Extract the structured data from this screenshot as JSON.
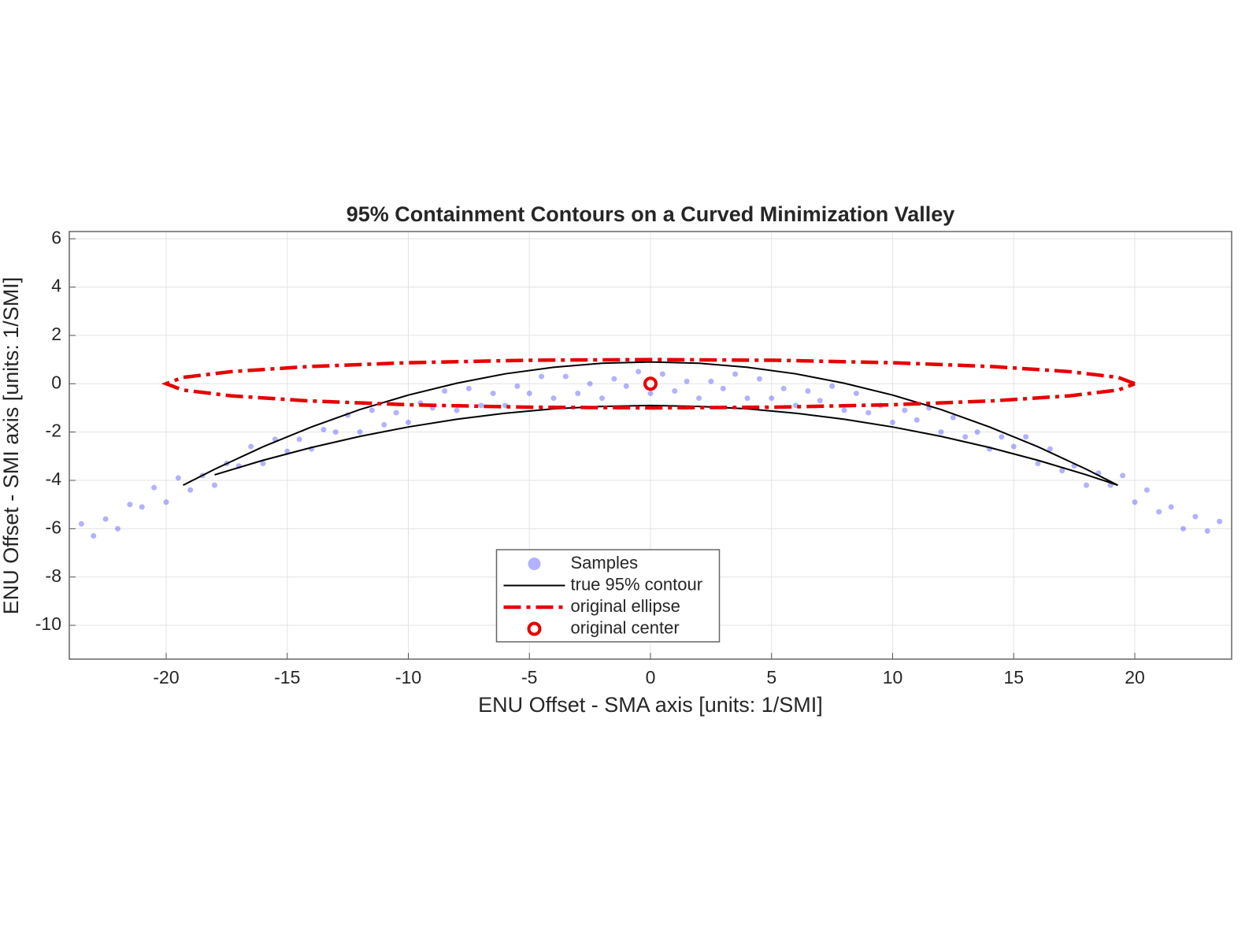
{
  "chart_data": {
    "type": "scatter",
    "title": "95% Containment Contours on a Curved Minimization Valley",
    "xlabel": "ENU Offset - SMA axis [units: 1/SMI]",
    "ylabel": "ENU Offset - SMI axis [units: 1/SMI]",
    "xlim": [
      -24,
      24
    ],
    "ylim": [
      -11.4,
      6.3
    ],
    "xticks": [
      -20,
      -15,
      -10,
      -5,
      0,
      5,
      10,
      15,
      20
    ],
    "yticks": [
      6,
      4,
      2,
      0,
      -2,
      -4,
      -6,
      -8,
      -10
    ],
    "grid": true,
    "legend": "south",
    "series": [
      {
        "name": "Samples",
        "style": "points",
        "color": "#0000ff",
        "x": [
          -23.5,
          -23,
          -22.5,
          -22,
          -21.5,
          -21,
          -20.5,
          -20,
          -19.5,
          -19,
          -18.5,
          -18,
          -17.5,
          -17,
          -16.5,
          -16,
          -15.5,
          -15,
          -14.5,
          -14,
          -13.5,
          -13,
          -12.5,
          -12,
          -11.5,
          -11,
          -10.5,
          -10,
          -9.5,
          -9,
          -8.5,
          -8,
          -7.5,
          -7,
          -6.5,
          -6,
          -5.5,
          -5,
          -4.5,
          -4,
          -3.5,
          -3,
          -2.5,
          -2,
          -1.5,
          -1,
          -0.5,
          0,
          0.5,
          1,
          1.5,
          2,
          2.5,
          3,
          3.5,
          4,
          4.5,
          5,
          5.5,
          6,
          6.5,
          7,
          7.5,
          8,
          8.5,
          9,
          9.5,
          10,
          10.5,
          11,
          11.5,
          12,
          12.5,
          13,
          13.5,
          14,
          14.5,
          15,
          15.5,
          16,
          16.5,
          17,
          17.5,
          18,
          18.5,
          19,
          19.5,
          20,
          20.5,
          21,
          21.5,
          22,
          22.5,
          23,
          23.5
        ],
        "y": [
          -5.8,
          -6.3,
          -5.6,
          -6.0,
          -5.0,
          -5.1,
          -4.3,
          -4.9,
          -3.9,
          -4.4,
          -3.8,
          -4.2,
          -3.3,
          -3.4,
          -2.6,
          -3.3,
          -2.3,
          -2.8,
          -2.3,
          -2.7,
          -1.9,
          -2.0,
          -1.3,
          -2.0,
          -1.1,
          -1.7,
          -1.2,
          -1.6,
          -0.8,
          -1.0,
          -0.3,
          -1.1,
          -0.2,
          -0.9,
          -0.4,
          -0.9,
          -0.1,
          -0.4,
          0.3,
          -0.6,
          0.3,
          -0.4,
          0.0,
          -0.6,
          0.2,
          -0.1,
          0.5,
          -0.4,
          0.4,
          -0.3,
          0.1,
          -0.6,
          0.1,
          -0.2,
          0.4,
          -0.6,
          0.2,
          -0.6,
          -0.2,
          -0.9,
          -0.3,
          -0.7,
          -0.1,
          -1.1,
          -0.4,
          -1.2,
          -0.9,
          -1.6,
          -1.1,
          -1.5,
          -1.0,
          -2.0,
          -1.4,
          -2.2,
          -2.0,
          -2.7,
          -2.2,
          -2.6,
          -2.2,
          -3.3,
          -2.7,
          -3.6,
          -3.4,
          -4.2,
          -3.7,
          -4.2,
          -3.8,
          -4.9,
          -4.4,
          -5.3,
          -5.1,
          -6.0,
          -5.5,
          -6.1,
          -5.7
        ]
      },
      {
        "name": "true 95% contour",
        "style": "solid",
        "color": "#000000",
        "x": [
          -19.3,
          -18,
          -16,
          -14,
          -12,
          -10,
          -8,
          -6,
          -4,
          -2,
          0,
          2,
          4,
          6,
          8,
          10,
          12,
          14,
          16,
          18,
          19.3,
          18,
          16,
          14,
          12,
          10,
          8,
          6,
          4,
          2,
          0,
          -2,
          -4,
          -6,
          -8,
          -10,
          -12,
          -14,
          -16,
          -18
        ],
        "y": [
          -4.2,
          -3.54,
          -2.61,
          -1.79,
          -1.07,
          -0.47,
          0.02,
          0.41,
          0.68,
          0.85,
          0.9,
          0.85,
          0.68,
          0.41,
          0.02,
          -0.47,
          -1.07,
          -1.79,
          -2.61,
          -3.54,
          -4.2,
          -3.77,
          -3.17,
          -2.64,
          -2.18,
          -1.79,
          -1.47,
          -1.22,
          -1.04,
          -0.94,
          -0.9,
          -0.94,
          -1.04,
          -1.22,
          -1.47,
          -1.79,
          -2.18,
          -2.64,
          -3.17,
          -3.77
        ]
      },
      {
        "name": "original ellipse",
        "style": "dashdot",
        "color": "#e60000",
        "x": [
          20,
          19.32,
          17.32,
          14.14,
          10,
          5.18,
          0,
          -5.18,
          -10,
          -14.14,
          -17.32,
          -19.32,
          -20,
          -19.32,
          -17.32,
          -14.14,
          -10,
          -5.18,
          0,
          5.18,
          10,
          14.14,
          17.32,
          19.32,
          20
        ],
        "y": [
          0,
          0.26,
          0.5,
          0.71,
          0.87,
          0.97,
          1,
          0.97,
          0.87,
          0.71,
          0.5,
          0.26,
          0,
          -0.26,
          -0.5,
          -0.71,
          -0.87,
          -0.97,
          -1,
          -0.97,
          -0.87,
          -0.71,
          -0.5,
          -0.26,
          0
        ]
      },
      {
        "name": "original center",
        "style": "ring",
        "color": "#e60000",
        "x": [
          0
        ],
        "y": [
          0
        ]
      }
    ]
  }
}
